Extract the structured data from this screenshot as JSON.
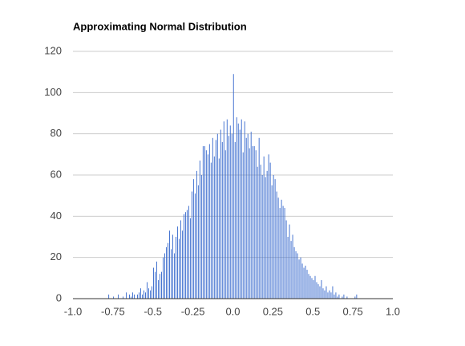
{
  "chart_data": {
    "type": "histogram",
    "title": "Approximating Normal Distribution",
    "color": "#3366cc",
    "grid": true,
    "bins": [
      -0.8,
      -0.79,
      -0.78,
      -0.77,
      -0.76,
      -0.75,
      -0.74,
      -0.73,
      -0.72,
      -0.71,
      -0.7,
      -0.69,
      -0.68,
      -0.67,
      -0.66,
      -0.65,
      -0.64,
      -0.63,
      -0.62,
      -0.61,
      -0.6,
      -0.59,
      -0.58,
      -0.57,
      -0.56,
      -0.55,
      -0.54,
      -0.53,
      -0.52,
      -0.51,
      -0.5,
      -0.49,
      -0.48,
      -0.47,
      -0.46,
      -0.45,
      -0.44,
      -0.43,
      -0.42,
      -0.41,
      -0.4,
      -0.39,
      -0.38,
      -0.37,
      -0.36,
      -0.35,
      -0.34,
      -0.33,
      -0.32,
      -0.31,
      -0.3,
      -0.29,
      -0.28,
      -0.27,
      -0.26,
      -0.25,
      -0.24,
      -0.23,
      -0.22,
      -0.21,
      -0.2,
      -0.19,
      -0.18,
      -0.17,
      -0.16,
      -0.15,
      -0.14,
      -0.13,
      -0.12,
      -0.11,
      -0.1,
      -0.09,
      -0.08,
      -0.07,
      -0.06,
      -0.05,
      -0.04,
      -0.03,
      -0.02,
      -0.01,
      0,
      0.01,
      0.02,
      0.03,
      0.04,
      0.05,
      0.06,
      0.07,
      0.08,
      0.09,
      0.1,
      0.11,
      0.12,
      0.13,
      0.14,
      0.15,
      0.16,
      0.17,
      0.18,
      0.19,
      0.2,
      0.21,
      0.22,
      0.23,
      0.24,
      0.25,
      0.26,
      0.27,
      0.28,
      0.29,
      0.3,
      0.31,
      0.32,
      0.33,
      0.34,
      0.35,
      0.36,
      0.37,
      0.38,
      0.39,
      0.4,
      0.41,
      0.42,
      0.43,
      0.44,
      0.45,
      0.46,
      0.47,
      0.48,
      0.49,
      0.5,
      0.51,
      0.52,
      0.53,
      0.54,
      0.55,
      0.56,
      0.57,
      0.58,
      0.59,
      0.6,
      0.61,
      0.62,
      0.63,
      0.64,
      0.65,
      0.66,
      0.67,
      0.68,
      0.69,
      0.7,
      0.71,
      0.72,
      0.73,
      0.74,
      0.75,
      0.76,
      0.77,
      0.78,
      0.79,
      0.8
    ],
    "values": [
      0,
      0,
      2,
      0,
      0,
      1,
      0,
      0,
      2,
      0,
      0,
      1,
      0,
      3,
      0,
      2,
      1,
      3,
      2,
      0,
      2,
      3,
      5,
      2,
      4,
      3,
      8,
      5,
      4,
      6,
      15,
      13,
      18,
      9,
      12,
      13,
      20,
      22,
      25,
      27,
      33,
      24,
      31,
      22,
      30,
      35,
      29,
      38,
      33,
      41,
      42,
      43,
      45,
      39,
      52,
      58,
      51,
      62,
      55,
      67,
      60,
      74,
      74,
      72,
      70,
      75,
      66,
      78,
      69,
      77,
      80,
      68,
      82,
      76,
      86,
      72,
      87,
      79,
      84,
      80,
      109,
      76,
      88,
      85,
      82,
      87,
      71,
      86,
      78,
      80,
      73,
      81,
      74,
      74,
      72,
      64,
      78,
      65,
      60,
      69,
      59,
      62,
      70,
      66,
      55,
      60,
      58,
      52,
      49,
      44,
      48,
      45,
      44,
      38,
      30,
      36,
      28,
      31,
      25,
      23,
      22,
      19,
      20,
      17,
      15,
      16,
      14,
      12,
      11,
      10,
      9,
      11,
      8,
      7,
      6,
      9,
      5,
      4,
      6,
      3,
      4,
      3,
      6,
      2,
      3,
      1,
      2,
      0,
      1,
      2,
      0,
      1,
      0,
      0,
      0,
      0,
      1,
      2,
      0,
      0
    ],
    "xlim": [
      -1,
      1
    ],
    "xticks": [
      {
        "value": -1,
        "label": "-1.0"
      },
      -0.75,
      -0.5,
      -0.25,
      {
        "value": 0,
        "label": "0.0"
      },
      0.25,
      0.5,
      0.75,
      {
        "value": 1,
        "label": "1.0"
      }
    ],
    "ylim": [
      0,
      120
    ],
    "yticks": [
      0,
      20,
      40,
      60,
      80,
      100,
      120
    ]
  }
}
